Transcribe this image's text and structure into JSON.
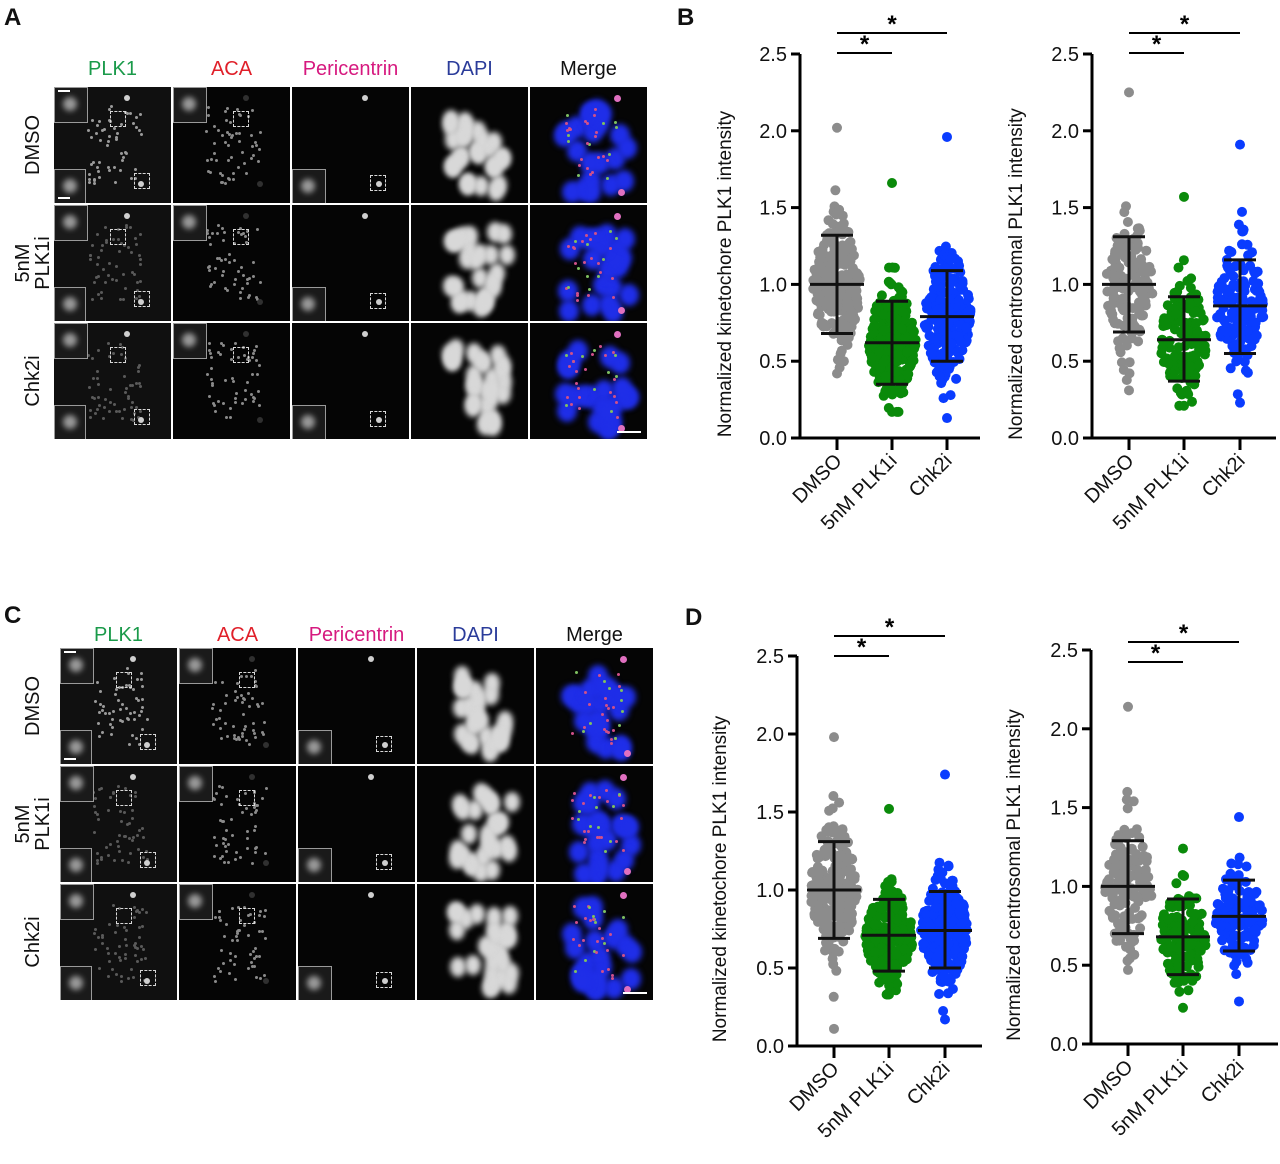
{
  "panels": {
    "A": {
      "letter": "A"
    },
    "B": {
      "letter": "B"
    },
    "C": {
      "letter": "C"
    },
    "D": {
      "letter": "D"
    }
  },
  "micrograph_columns": [
    {
      "label": "PLK1",
      "color": "#1a9a4a"
    },
    {
      "label": "ACA",
      "color": "#e0202a"
    },
    {
      "label": "Pericentrin",
      "color": "#d6197f"
    },
    {
      "label": "DAPI",
      "color": "#2b3c9a"
    },
    {
      "label": "Merge",
      "color": "#111111"
    }
  ],
  "micrograph_rows": [
    {
      "label_line1": "DMSO",
      "label_line2": ""
    },
    {
      "label_line1": "5nM",
      "label_line2": "PLK1i"
    },
    {
      "label_line1": "Chk2i",
      "label_line2": ""
    }
  ],
  "chart_data": [
    {
      "id": "B-kinetochore",
      "panel": "B",
      "type": "scatter",
      "subtype": "dot-plot with mean ± SD",
      "title": "",
      "xlabel": "",
      "ylabel": "Normalized kinetochore PLK1 intensity",
      "ylim": [
        0,
        2.5
      ],
      "yticks": [
        "0.0",
        "0.5",
        "1.0",
        "1.5",
        "2.0",
        "2.5"
      ],
      "categories": [
        "DMSO",
        "5nM PLK1i",
        "Chk2i"
      ],
      "colors": [
        "#8c8c8c",
        "#0a8a0a",
        "#0a3cff"
      ],
      "series": [
        {
          "name": "DMSO",
          "mean": 1.0,
          "sd_low": 0.68,
          "sd_high": 1.32,
          "min": 0.42,
          "max": 2.02
        },
        {
          "name": "5nM PLK1i",
          "mean": 0.62,
          "sd_low": 0.35,
          "sd_high": 0.89,
          "min": 0.17,
          "max": 1.66
        },
        {
          "name": "Chk2i",
          "mean": 0.79,
          "sd_low": 0.5,
          "sd_high": 1.09,
          "min": 0.13,
          "max": 1.96
        }
      ],
      "significance": [
        {
          "from": "DMSO",
          "to": "5nM PLK1i",
          "label": "*"
        },
        {
          "from": "DMSO",
          "to": "Chk2i",
          "label": "*"
        }
      ]
    },
    {
      "id": "B-centrosomal",
      "panel": "B",
      "type": "scatter",
      "subtype": "dot-plot with mean ± SD",
      "title": "",
      "xlabel": "",
      "ylabel": "Normalized centrosomal PLK1 intensity",
      "ylim": [
        0,
        2.5
      ],
      "yticks": [
        "0.0",
        "0.5",
        "1.0",
        "1.5",
        "2.0",
        "2.5"
      ],
      "categories": [
        "DMSO",
        "5nM PLK1i",
        "Chk2i"
      ],
      "colors": [
        "#8c8c8c",
        "#0a8a0a",
        "#0a3cff"
      ],
      "series": [
        {
          "name": "DMSO",
          "mean": 1.0,
          "sd_low": 0.69,
          "sd_high": 1.31,
          "min": 0.31,
          "max": 2.25
        },
        {
          "name": "5nM PLK1i",
          "mean": 0.64,
          "sd_low": 0.37,
          "sd_high": 0.92,
          "min": 0.21,
          "max": 1.57
        },
        {
          "name": "Chk2i",
          "mean": 0.86,
          "sd_low": 0.55,
          "sd_high": 1.16,
          "min": 0.23,
          "max": 1.91
        }
      ],
      "significance": [
        {
          "from": "DMSO",
          "to": "5nM PLK1i",
          "label": "*"
        },
        {
          "from": "DMSO",
          "to": "Chk2i",
          "label": "*"
        }
      ]
    },
    {
      "id": "D-kinetochore",
      "panel": "D",
      "type": "scatter",
      "subtype": "dot-plot with mean ± SD",
      "title": "",
      "xlabel": "",
      "ylabel": "Normalized kinetochore PLK1 intensity",
      "ylim": [
        0,
        2.5
      ],
      "yticks": [
        "0.0",
        "0.5",
        "1.0",
        "1.5",
        "2.0",
        "2.5"
      ],
      "categories": [
        "DMSO",
        "5nM PLK1i",
        "Chk2i"
      ],
      "colors": [
        "#8c8c8c",
        "#0a8a0a",
        "#0a3cff"
      ],
      "series": [
        {
          "name": "DMSO",
          "mean": 1.0,
          "sd_low": 0.69,
          "sd_high": 1.31,
          "min": 0.11,
          "max": 1.98
        },
        {
          "name": "5nM PLK1i",
          "mean": 0.71,
          "sd_low": 0.48,
          "sd_high": 0.94,
          "min": 0.33,
          "max": 1.52
        },
        {
          "name": "Chk2i",
          "mean": 0.74,
          "sd_low": 0.5,
          "sd_high": 0.99,
          "min": 0.17,
          "max": 1.74
        }
      ],
      "significance": [
        {
          "from": "DMSO",
          "to": "5nM PLK1i",
          "label": "*"
        },
        {
          "from": "DMSO",
          "to": "Chk2i",
          "label": "*"
        }
      ]
    },
    {
      "id": "D-centrosomal",
      "panel": "D",
      "type": "scatter",
      "subtype": "dot-plot with mean ± SD",
      "title": "",
      "xlabel": "",
      "ylabel": "Normalized centrosomal PLK1 intensity",
      "ylim": [
        0,
        2.5
      ],
      "yticks": [
        "0.0",
        "0.5",
        "1.0",
        "1.5",
        "2.0",
        "2.5"
      ],
      "categories": [
        "DMSO",
        "5nM PLK1i",
        "Chk2i"
      ],
      "colors": [
        "#8c8c8c",
        "#0a8a0a",
        "#0a3cff"
      ],
      "series": [
        {
          "name": "DMSO",
          "mean": 1.0,
          "sd_low": 0.7,
          "sd_high": 1.29,
          "min": 0.47,
          "max": 2.14
        },
        {
          "name": "5nM PLK1i",
          "mean": 0.68,
          "sd_low": 0.44,
          "sd_high": 0.92,
          "min": 0.23,
          "max": 1.24
        },
        {
          "name": "Chk2i",
          "mean": 0.81,
          "sd_low": 0.59,
          "sd_high": 1.04,
          "min": 0.27,
          "max": 1.44
        }
      ],
      "significance": [
        {
          "from": "DMSO",
          "to": "5nM PLK1i",
          "label": "*"
        },
        {
          "from": "DMSO",
          "to": "Chk2i",
          "label": "*"
        }
      ]
    }
  ]
}
